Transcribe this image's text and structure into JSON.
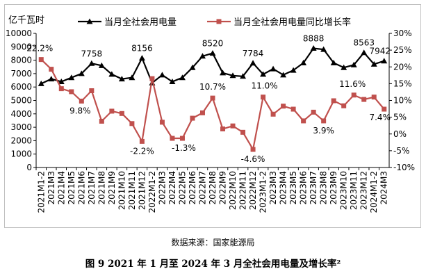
{
  "chart_data": {
    "type": "line",
    "y_unit_label": "亿千瓦时",
    "categories": [
      "2021M1-2",
      "2021M3",
      "2021M4",
      "2021M5",
      "2021M6",
      "2021M7",
      "2021M8",
      "2021M9",
      "2021M10",
      "2021M11",
      "2021M12",
      "2022M1-2",
      "2022M3",
      "2022M4",
      "2022M5",
      "2022M6",
      "2022M7",
      "2022M8",
      "2022M9",
      "2022M10",
      "2022M11",
      "2022M12",
      "2023M1-2",
      "2023M3",
      "2023M4",
      "2023M5",
      "2023M6",
      "2023M7",
      "2023M8",
      "2023M9",
      "2023M10",
      "2023M11",
      "2023M12",
      "2024M1-2",
      "2024M3"
    ],
    "series": [
      {
        "name": "当月全社会用电量",
        "axis": "left",
        "color": "#000000",
        "marker": "triangle",
        "values": [
          6250,
          6600,
          6400,
          6700,
          7000,
          7758,
          7600,
          6950,
          6600,
          6700,
          8156,
          6300,
          6900,
          6400,
          6700,
          7450,
          8300,
          8520,
          7050,
          6850,
          6800,
          7784,
          6950,
          7350,
          6900,
          7250,
          7800,
          8888,
          8800,
          7800,
          7450,
          7650,
          8563,
          7700,
          7942
        ]
      },
      {
        "name": "当月全社会用电量同比增长率",
        "axis": "right",
        "color": "#c0504d",
        "marker": "square",
        "values": [
          22.2,
          19.3,
          13.5,
          12.6,
          9.8,
          12.9,
          3.8,
          6.8,
          6.1,
          3.1,
          -2.2,
          16.5,
          3.5,
          -1.3,
          -1.3,
          4.7,
          6.3,
          10.7,
          1.5,
          2.4,
          0.5,
          -4.6,
          11.0,
          5.9,
          8.3,
          7.4,
          3.9,
          6.5,
          3.9,
          9.9,
          8.4,
          11.6,
          10.3,
          11.0,
          7.4
        ]
      }
    ],
    "annotations": [
      {
        "series": 1,
        "index": 0,
        "text": "22.2%"
      },
      {
        "series": 1,
        "index": 4,
        "text": "9.8%"
      },
      {
        "series": 1,
        "index": 10,
        "text": "-2.2%"
      },
      {
        "series": 1,
        "index": 14,
        "text": "-1.3%"
      },
      {
        "series": 1,
        "index": 17,
        "text": "10.7%"
      },
      {
        "series": 1,
        "index": 21,
        "text": "-4.6%"
      },
      {
        "series": 1,
        "index": 22,
        "text": "11.0%"
      },
      {
        "series": 1,
        "index": 28,
        "text": "3.9%"
      },
      {
        "series": 1,
        "index": 31,
        "text": "11.6%"
      },
      {
        "series": 1,
        "index": 34,
        "text": "7.4%"
      },
      {
        "series": 0,
        "index": 5,
        "text": "7758"
      },
      {
        "series": 0,
        "index": 10,
        "text": "8156"
      },
      {
        "series": 0,
        "index": 17,
        "text": "8520"
      },
      {
        "series": 0,
        "index": 21,
        "text": "7784"
      },
      {
        "series": 0,
        "index": 27,
        "text": "8888"
      },
      {
        "series": 0,
        "index": 32,
        "text": "8563"
      },
      {
        "series": 0,
        "index": 34,
        "text": "7942"
      }
    ],
    "y_left": {
      "min": 0,
      "max": 10000,
      "step": 1000
    },
    "y_right": {
      "min": -10,
      "max": 30,
      "step": 5,
      "suffix": "%"
    },
    "legend_position": "top",
    "grid": false
  },
  "caption": {
    "source": "数据来源：国家能源局",
    "title": "图 9  2021 年 1 月至 2024 年 3 月全社会用电量及增长率²"
  }
}
